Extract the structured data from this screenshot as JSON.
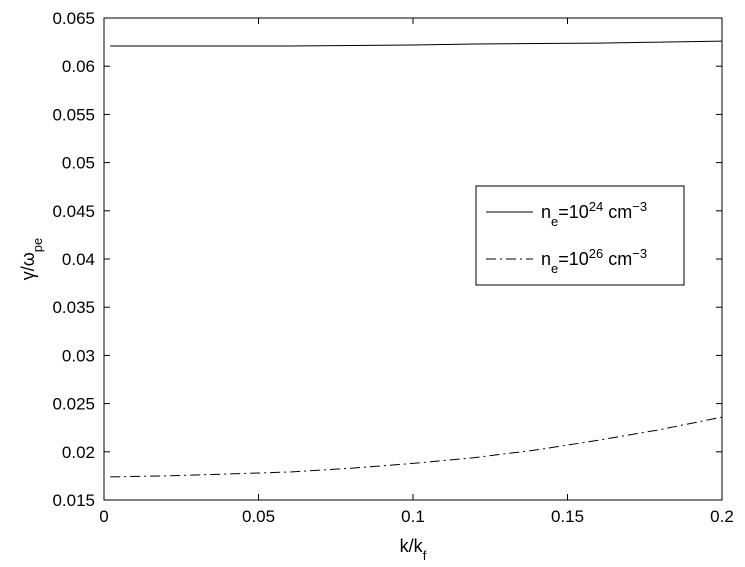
{
  "chart_data": {
    "type": "line",
    "title": "",
    "xlabel": "k/k_f",
    "ylabel": "γ/ω_pe",
    "xlim": [
      0,
      0.2
    ],
    "ylim": [
      0.015,
      0.065
    ],
    "x_ticks": [
      "0",
      "0.05",
      "0.1",
      "0.15",
      "0.2"
    ],
    "y_ticks": [
      "0.015",
      "0.02",
      "0.025",
      "0.03",
      "0.035",
      "0.04",
      "0.045",
      "0.05",
      "0.055",
      "0.06",
      "0.065"
    ],
    "grid": false,
    "legend_position": "right-middle",
    "series": [
      {
        "name": "n_e=10^24 cm^-3",
        "legend": {
          "base": "n",
          "sub": "e",
          "mid": "=10",
          "sup": "24",
          "unit": " cm",
          "unit_sup": "−3"
        },
        "line_style": "solid",
        "color": "#000000",
        "x": [
          0.002,
          0.02,
          0.04,
          0.06,
          0.08,
          0.1,
          0.12,
          0.14,
          0.16,
          0.18,
          0.2
        ],
        "y": [
          0.0621,
          0.0621,
          0.0621,
          0.0621,
          0.06215,
          0.0622,
          0.0623,
          0.06235,
          0.0624,
          0.0625,
          0.0626
        ]
      },
      {
        "name": "n_e=10^26 cm^-3",
        "legend": {
          "base": "n",
          "sub": "e",
          "mid": "=10",
          "sup": "26",
          "unit": " cm",
          "unit_sup": "−3"
        },
        "line_style": "dashdot",
        "color": "#000000",
        "x": [
          0.002,
          0.02,
          0.04,
          0.06,
          0.08,
          0.1,
          0.12,
          0.14,
          0.16,
          0.18,
          0.2
        ],
        "y": [
          0.0174,
          0.0175,
          0.0177,
          0.0179,
          0.0183,
          0.0188,
          0.0194,
          0.0202,
          0.0212,
          0.0223,
          0.0236
        ]
      }
    ]
  }
}
